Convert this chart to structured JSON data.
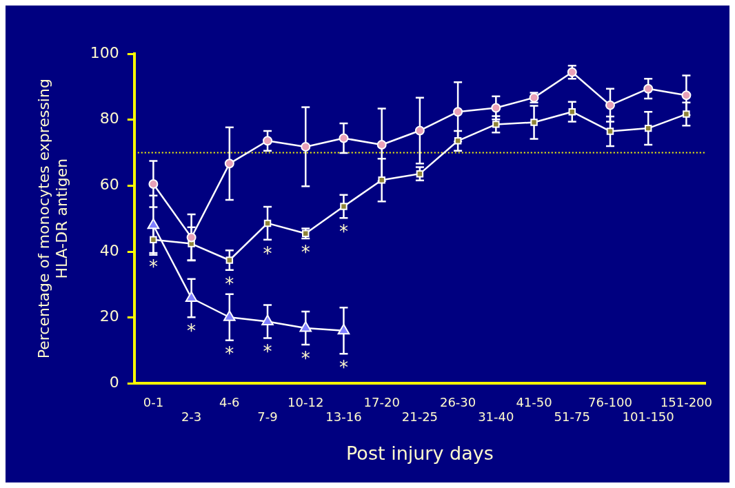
{
  "chart_data": {
    "type": "line",
    "xlabel": "Post injury days",
    "ylabel": "Percentage of monocytes expressing HLA-DR antigen",
    "categories": [
      "0-1",
      "2-3",
      "4-6",
      "7-9",
      "10-12",
      "13-16",
      "17-20",
      "21-25",
      "26-30",
      "31-40",
      "41-50",
      "51-75",
      "76-100",
      "101-150",
      "151-200"
    ],
    "ylim": [
      0,
      100
    ],
    "yticks": [
      0,
      20,
      40,
      60,
      80,
      100
    ],
    "grid": false,
    "legend": false,
    "line_style": "solid",
    "series": [
      {
        "color": "#e8a0b8",
        "marker": "circle",
        "values": [
          60.5,
          44.3,
          66.7,
          73.6,
          71.8,
          74.4,
          72.4,
          76.7,
          82.4,
          83.6,
          86.7,
          94.4,
          84.4,
          89.4,
          87.4
        ],
        "errors": [
          7,
          7,
          11,
          3,
          12,
          4.5,
          11,
          10,
          9,
          3.5,
          1.5,
          2,
          5,
          3,
          6
        ]
      },
      {
        "color": "#8f8438",
        "marker": "square",
        "values": [
          43.6,
          42.4,
          37.4,
          48.6,
          45.5,
          53.7,
          61.7,
          63.6,
          73.6,
          78.6,
          79.2,
          82.4,
          76.5,
          77.4,
          81.7
        ],
        "errors": [
          4,
          5,
          3,
          5,
          1.5,
          3.5,
          6.5,
          2,
          3,
          2.5,
          5,
          3,
          4.5,
          5,
          3.5
        ]
      },
      {
        "color": "#8080ff",
        "marker": "triangle",
        "values": [
          48,
          25.9,
          20.1,
          18.8,
          16.8,
          16,
          null,
          null,
          null,
          null,
          null,
          null,
          null,
          null,
          null
        ],
        "errors": [
          9,
          5.8,
          7,
          5,
          5,
          7,
          null,
          null,
          null,
          null,
          null,
          null,
          null,
          null,
          null
        ]
      }
    ],
    "ref_lines": [
      {
        "axis": "y",
        "value": 70,
        "color": "#ffff00",
        "line_style": "dotted"
      }
    ],
    "annotations": [
      {
        "text": "*",
        "x": "0-1",
        "y": 43.6
      },
      {
        "text": "*",
        "x": "2-3",
        "y": 25.9
      },
      {
        "text": "*",
        "x": "4-6",
        "y": 37.4
      },
      {
        "text": "*",
        "x": "4-6",
        "y": 20.1
      },
      {
        "text": "*",
        "x": "7-9",
        "y": 48.6
      },
      {
        "text": "*",
        "x": "7-9",
        "y": 18.8
      },
      {
        "text": "*",
        "x": "10-12",
        "y": 45.5
      },
      {
        "text": "*",
        "x": "10-12",
        "y": 16.8
      },
      {
        "text": "*",
        "x": "13-16",
        "y": 53.7
      },
      {
        "text": "*",
        "x": "13-16",
        "y": 16
      }
    ]
  }
}
